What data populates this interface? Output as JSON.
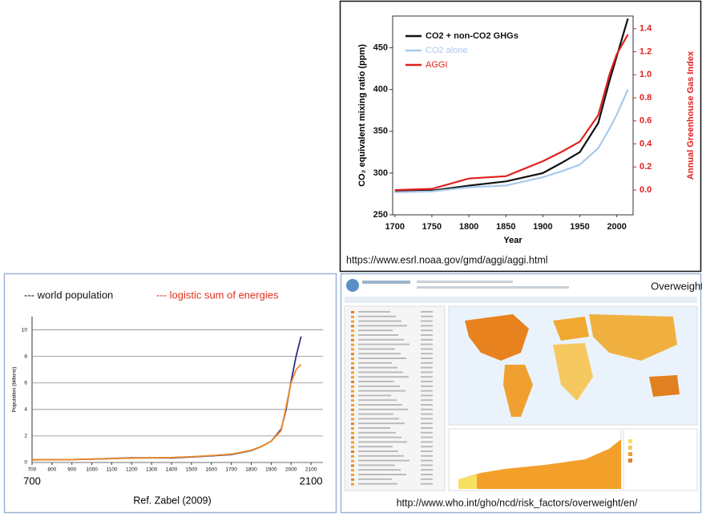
{
  "chart_data": [
    {
      "type": "line",
      "x_label": "Year",
      "y_label": "CO₂ equivalent mixing ratio (ppm)",
      "y2_label": "Annual Greenhouse Gas Index",
      "source": "https://www.esrl.noaa.gov/gmd/aggi/aggi.html",
      "x": [
        1700,
        1750,
        1800,
        1850,
        1900,
        1925,
        1950,
        1975,
        1990,
        2000,
        2015
      ],
      "series": [
        {
          "name": "CO2 + non-CO2 GHGs",
          "color": "#111111",
          "values": [
            278,
            279,
            285,
            290,
            300,
            312,
            325,
            360,
            410,
            440,
            485
          ]
        },
        {
          "name": "CO2 alone",
          "color": "#a9c9ea",
          "values": [
            277,
            278,
            283,
            285,
            295,
            302,
            310,
            330,
            353,
            370,
            400
          ]
        },
        {
          "name": "AGGI",
          "color": "#e02020",
          "axis": "y2",
          "values": [
            0,
            0.01,
            0.1,
            0.12,
            0.25,
            0.33,
            0.42,
            0.65,
            1.0,
            1.18,
            1.35
          ]
        }
      ],
      "xlim": [
        1697,
        2022
      ],
      "xticks": [
        1700,
        1750,
        1800,
        1850,
        1900,
        1950,
        2000
      ],
      "ylim": [
        250,
        488
      ],
      "yticks": [
        250,
        300,
        350,
        400,
        450
      ],
      "y2lim": [
        -0.215,
        1.51
      ],
      "y2ticks": [
        {
          "value": 0,
          "label": "0.0"
        },
        0.2,
        0.4,
        0.6,
        0.8,
        {
          "value": 1,
          "label": "1.0"
        },
        1.2,
        1.4
      ],
      "legend": "upper left",
      "grid": false
    },
    {
      "type": "line",
      "y_label": "Population (billions)",
      "note": "Ref. Zabel (2009)",
      "x": [
        700,
        900,
        1000,
        1200,
        1400,
        1500,
        1600,
        1700,
        1800,
        1850,
        1900,
        1950,
        1975,
        2000,
        2025,
        2050
      ],
      "series": [
        {
          "name": "--- world population",
          "color": "#2b2f8f",
          "text_color": "#111111",
          "values": [
            0.2,
            0.22,
            0.25,
            0.35,
            0.35,
            0.42,
            0.5,
            0.6,
            0.9,
            1.2,
            1.6,
            2.5,
            4.0,
            6.1,
            8.0,
            9.5
          ]
        },
        {
          "name": "--- logistic sum of energies",
          "color": "#f08a24",
          "text_color": "#e0301e",
          "values": [
            0.2,
            0.22,
            0.26,
            0.33,
            0.38,
            0.44,
            0.52,
            0.63,
            0.92,
            1.2,
            1.6,
            2.4,
            4.2,
            6.0,
            7.0,
            7.4
          ]
        }
      ],
      "xlim": [
        700,
        2160
      ],
      "xticks": [
        700,
        800,
        900,
        1000,
        1100,
        1200,
        1300,
        1400,
        1500,
        1600,
        1700,
        1800,
        1900,
        2000,
        2100
      ],
      "ylim": [
        0,
        11
      ],
      "yticks": [
        0,
        2,
        4,
        6,
        8,
        10
      ],
      "grid": true
    }
  ],
  "who_panel": {
    "title": "Overweight",
    "source": "http://www.who.int/gho/ncd/risk_factors/overweight/en/"
  }
}
